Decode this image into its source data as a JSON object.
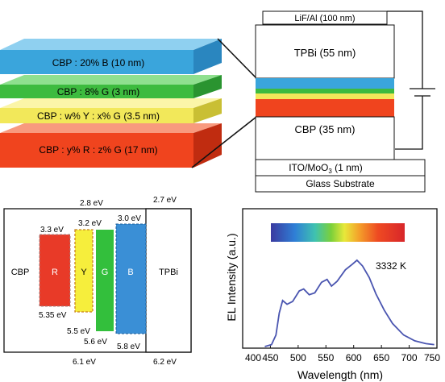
{
  "stack_layers": [
    {
      "label": "CBP : 20% B (10 nm)",
      "color": "#3aa5dc"
    },
    {
      "label": "CBP : 8% G (3 nm)",
      "color": "#3dbb3f"
    },
    {
      "label": "CBP : w% Y : x% G (3.5 nm)",
      "color": "#f2e85a"
    },
    {
      "label": "CBP : y% R : z% G (17 nm)",
      "color": "#f0441e"
    }
  ],
  "device": {
    "lif": "LiF/Al (100 nm)",
    "tpbi": "TPBi (55 nm)",
    "cbp": "CBP (35 nm)",
    "ito_main": "ITO/MoO",
    "ito_sub": "3",
    "ito_tail": " (1 nm)",
    "glass": "Glass Substrate"
  },
  "energy": {
    "cbp": "CBP",
    "tpbi": "TPBi",
    "r": "R",
    "y": "Y",
    "g": "G",
    "b": "B",
    "e_2_8": "2.8 eV",
    "e_2_7": "2.7 eV",
    "e_3_3": "3.3 eV",
    "e_3_2": "3.2 eV",
    "e_3_0": "3.0 eV",
    "e_5_35": "5.35 eV",
    "e_5_5": "5.5 eV",
    "e_5_6": "5.6 eV",
    "e_5_8": "5.8 eV",
    "e_6_1": "6.1 eV",
    "e_6_2": "6.2 eV"
  },
  "spectrum": {
    "ylabel": "EL Intensity (a.u.)",
    "xlabel": "Wavelength (nm)",
    "annotation": "3332 K",
    "x_ticks": [
      "400",
      "450",
      "500",
      "550",
      "600",
      "650",
      "700",
      "750"
    ],
    "color_bar_range": [
      450,
      700
    ],
    "x_range": [
      400,
      750
    ],
    "line_color": "#4a55b0"
  }
}
